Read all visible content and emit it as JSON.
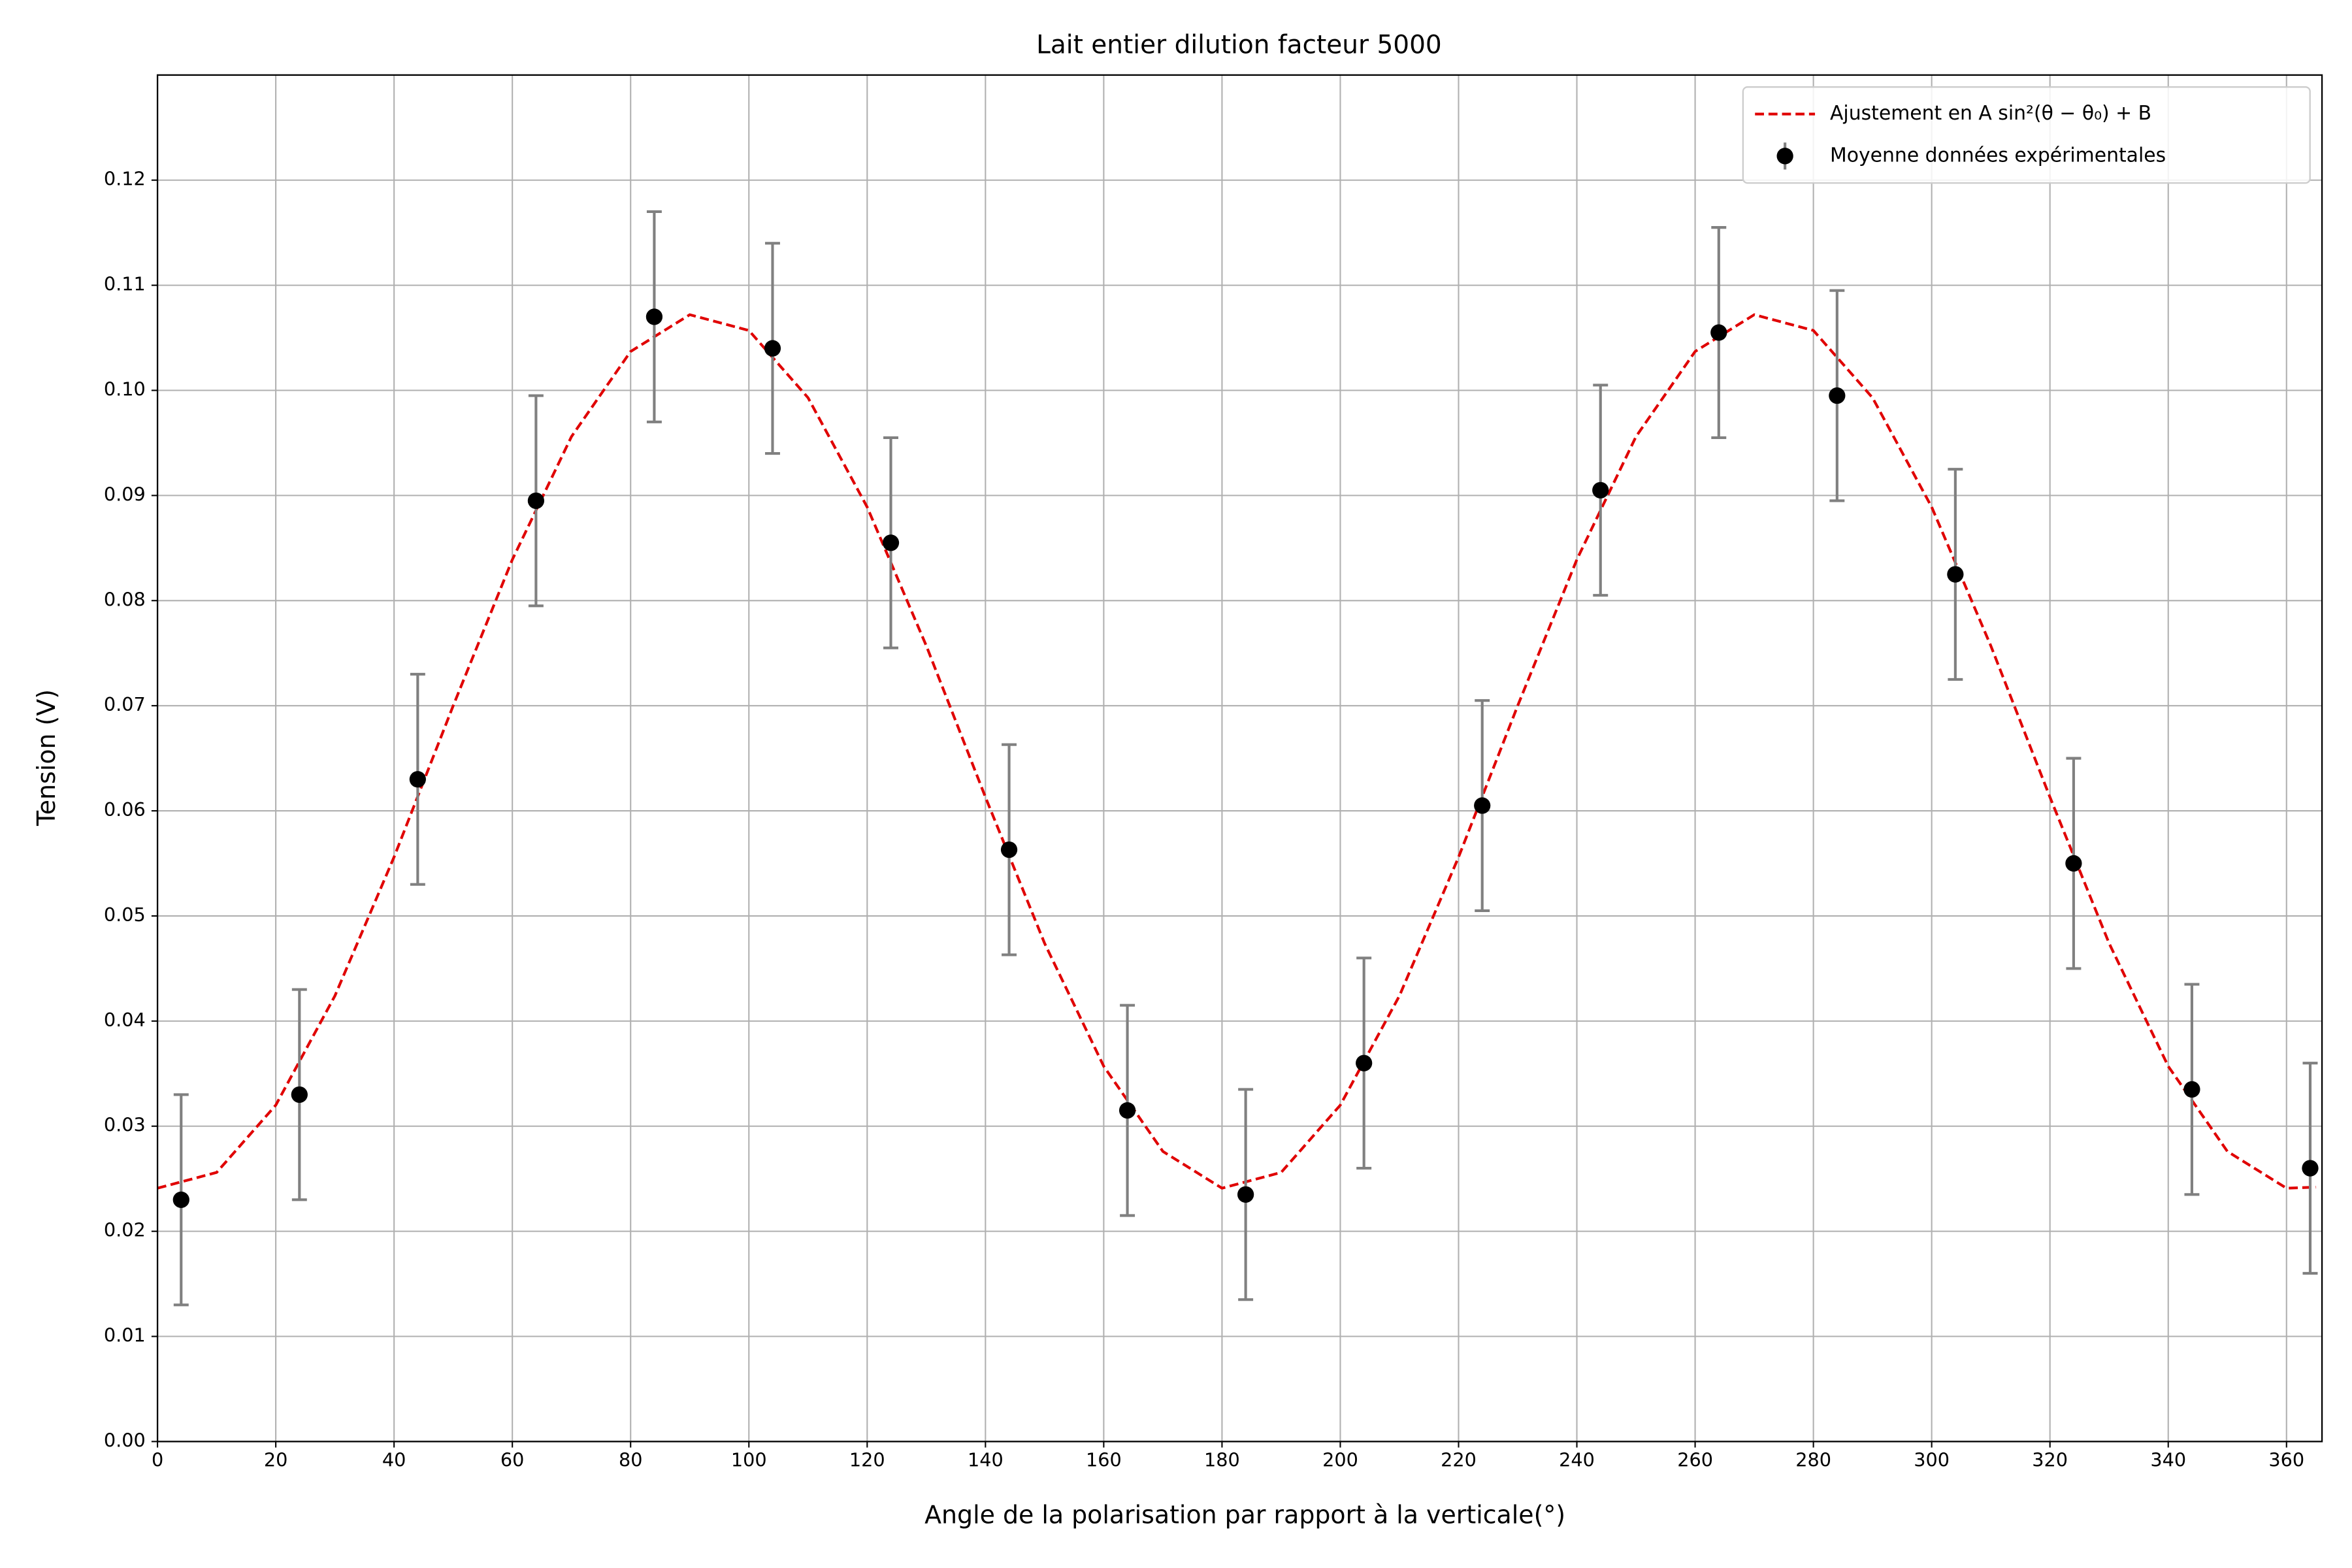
{
  "chart_data": {
    "type": "scatter",
    "title": "Lait entier dilution facteur 5000",
    "x_label": "Angle de la polarisation par rapport à la verticale(°)",
    "y_label": "Tension (V)",
    "xlim": [
      0,
      366
    ],
    "ylim": [
      0,
      0.13
    ],
    "xticks": [
      0,
      20,
      40,
      60,
      80,
      100,
      120,
      140,
      160,
      180,
      200,
      220,
      240,
      260,
      280,
      300,
      320,
      340,
      360
    ],
    "yticks": [
      {
        "value": 0,
        "label": "0.00"
      },
      {
        "value": 0.01,
        "label": "0.01"
      },
      {
        "value": 0.02,
        "label": "0.02"
      },
      {
        "value": 0.03,
        "label": "0.03"
      },
      {
        "value": 0.04,
        "label": "0.04"
      },
      {
        "value": 0.05,
        "label": "0.05"
      },
      {
        "value": 0.06,
        "label": "0.06"
      },
      {
        "value": 0.07,
        "label": "0.07"
      },
      {
        "value": 0.08,
        "label": "0.08"
      },
      {
        "value": 0.09,
        "label": "0.09"
      },
      {
        "value": 0.1,
        "label": "0.10"
      },
      {
        "value": 0.11,
        "label": "0.11"
      },
      {
        "value": 0.12,
        "label": "0.12"
      }
    ],
    "grid": true,
    "legend": "upper right",
    "series": [
      {
        "name": "Ajustement en A sin²(θ − θ₀) + B",
        "kind": "line",
        "color": "#e00000",
        "x": [
          0,
          10,
          20,
          30,
          40,
          50,
          60,
          70,
          80,
          90,
          100,
          110,
          120,
          130,
          140,
          150,
          160,
          170,
          180,
          190,
          200,
          210,
          220,
          230,
          240,
          250,
          260,
          270,
          280,
          290,
          300,
          310,
          320,
          330,
          340,
          350,
          360,
          365
        ],
        "values": [
          0.0241,
          0.0256,
          0.032,
          0.0424,
          0.0556,
          0.07,
          0.0839,
          0.0956,
          0.1037,
          0.1072,
          0.1057,
          0.0993,
          0.0889,
          0.0757,
          0.0613,
          0.0474,
          0.0357,
          0.0276,
          0.0241,
          0.0256,
          0.032,
          0.0424,
          0.0556,
          0.07,
          0.0839,
          0.0956,
          0.1037,
          0.1072,
          0.1057,
          0.0993,
          0.0889,
          0.0757,
          0.0613,
          0.0474,
          0.0357,
          0.0276,
          0.0241,
          0.0242
        ]
      },
      {
        "name": "Moyenne données expérimentales",
        "kind": "errorbar",
        "color": "#000000",
        "error_color": "#808080",
        "x": [
          4,
          24,
          44,
          64,
          84,
          104,
          124,
          144,
          164,
          184,
          204,
          224,
          244,
          264,
          284,
          304,
          324,
          344,
          364
        ],
        "values": [
          0.023,
          0.033,
          0.063,
          0.0895,
          0.107,
          0.104,
          0.0855,
          0.0563,
          0.0315,
          0.0235,
          0.036,
          0.0605,
          0.0905,
          0.1055,
          0.0995,
          0.0825,
          0.055,
          0.0335,
          0.026
        ],
        "errors": [
          0.01,
          0.01,
          0.01,
          0.01,
          0.01,
          0.01,
          0.01,
          0.01,
          0.01,
          0.01,
          0.01,
          0.01,
          0.01,
          0.01,
          0.01,
          0.01,
          0.01,
          0.01,
          0.01
        ]
      }
    ]
  }
}
